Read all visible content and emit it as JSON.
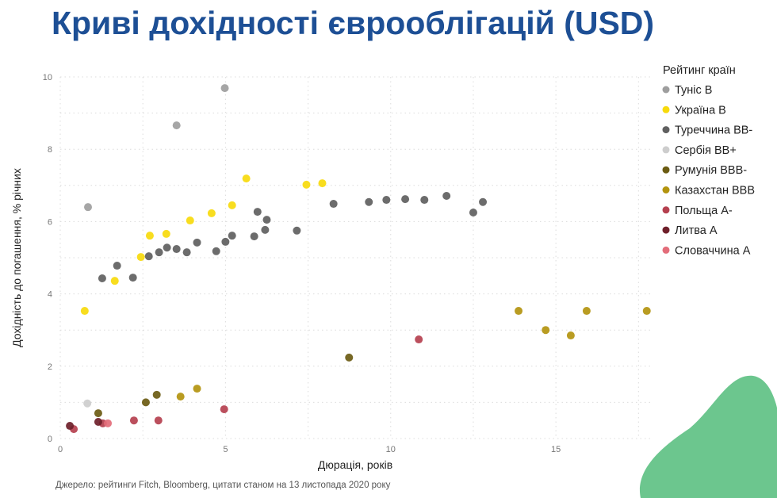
{
  "chart_data": {
    "type": "scatter",
    "title": "Криві дохідності єврооблігацій (USD)",
    "xlabel": "Дюрація, років",
    "ylabel": "Дохідність до погашення, % річних",
    "xlim": [
      0,
      17.9
    ],
    "ylim": [
      0,
      10
    ],
    "xticks": [
      "0",
      "5",
      "10",
      "15"
    ],
    "yticks": [
      "0",
      "2",
      "4",
      "6",
      "8",
      "10"
    ],
    "grid": true,
    "legend_title": "Рейтинг країн",
    "legend_position": "right",
    "source": "Джерело: рейтинги Fitch, Bloomberg, цитати станом на 13 листопада 2020 року",
    "series": [
      {
        "name": "Туніс B",
        "color": "#9e9e9e",
        "points": [
          [
            0.84,
            6.4
          ],
          [
            3.52,
            8.66
          ],
          [
            4.98,
            9.69
          ]
        ]
      },
      {
        "name": "Україна B",
        "color": "#f7da0c",
        "points": [
          [
            0.74,
            3.53
          ],
          [
            1.65,
            4.36
          ],
          [
            2.44,
            5.02
          ],
          [
            2.71,
            5.61
          ],
          [
            3.21,
            5.66
          ],
          [
            3.93,
            6.03
          ],
          [
            4.58,
            6.23
          ],
          [
            5.2,
            6.45
          ],
          [
            5.63,
            7.19
          ],
          [
            7.45,
            7.02
          ],
          [
            7.93,
            7.06
          ]
        ]
      },
      {
        "name": "Туреччина BB-",
        "color": "#606060",
        "points": [
          [
            1.27,
            4.43
          ],
          [
            1.72,
            4.78
          ],
          [
            2.2,
            4.45
          ],
          [
            2.68,
            5.04
          ],
          [
            2.99,
            5.15
          ],
          [
            3.23,
            5.28
          ],
          [
            3.52,
            5.24
          ],
          [
            3.83,
            5.15
          ],
          [
            4.14,
            5.42
          ],
          [
            4.72,
            5.18
          ],
          [
            5.0,
            5.44
          ],
          [
            5.2,
            5.61
          ],
          [
            5.87,
            5.59
          ],
          [
            5.97,
            6.27
          ],
          [
            6.2,
            5.77
          ],
          [
            6.25,
            6.05
          ],
          [
            7.16,
            5.75
          ],
          [
            8.27,
            6.49
          ],
          [
            9.34,
            6.54
          ],
          [
            9.87,
            6.6
          ],
          [
            10.44,
            6.62
          ],
          [
            11.02,
            6.6
          ],
          [
            11.69,
            6.71
          ],
          [
            12.5,
            6.25
          ],
          [
            12.79,
            6.54
          ]
        ]
      },
      {
        "name": "Сербія BB+",
        "color": "#cdcdcd",
        "points": [
          [
            0.82,
            0.97
          ]
        ]
      },
      {
        "name": "Румунія BBB-",
        "color": "#6b5b12",
        "points": [
          [
            1.15,
            0.7
          ],
          [
            2.59,
            1.0
          ],
          [
            2.92,
            1.21
          ],
          [
            8.74,
            2.24
          ]
        ]
      },
      {
        "name": "Казахстан BBB",
        "color": "#b3940f",
        "points": [
          [
            3.64,
            1.16
          ],
          [
            4.14,
            1.38
          ],
          [
            13.87,
            3.53
          ],
          [
            14.69,
            3.0
          ],
          [
            15.45,
            2.85
          ],
          [
            15.93,
            3.53
          ],
          [
            17.75,
            3.53
          ]
        ]
      },
      {
        "name": "Польща A-",
        "color": "#b5404f",
        "points": [
          [
            0.41,
            0.26
          ],
          [
            1.29,
            0.42
          ],
          [
            2.23,
            0.5
          ],
          [
            2.97,
            0.5
          ],
          [
            4.96,
            0.81
          ],
          [
            10.85,
            2.74
          ]
        ]
      },
      {
        "name": "Литва A",
        "color": "#6e1f2a",
        "points": [
          [
            0.29,
            0.35
          ],
          [
            1.15,
            0.46
          ]
        ]
      },
      {
        "name": "Словаччина A",
        "color": "#e36d7a",
        "points": [
          [
            1.44,
            0.42
          ]
        ]
      }
    ]
  },
  "decor": {
    "blob_color": "#6cc68e",
    "title_color": "#1d4f95"
  }
}
